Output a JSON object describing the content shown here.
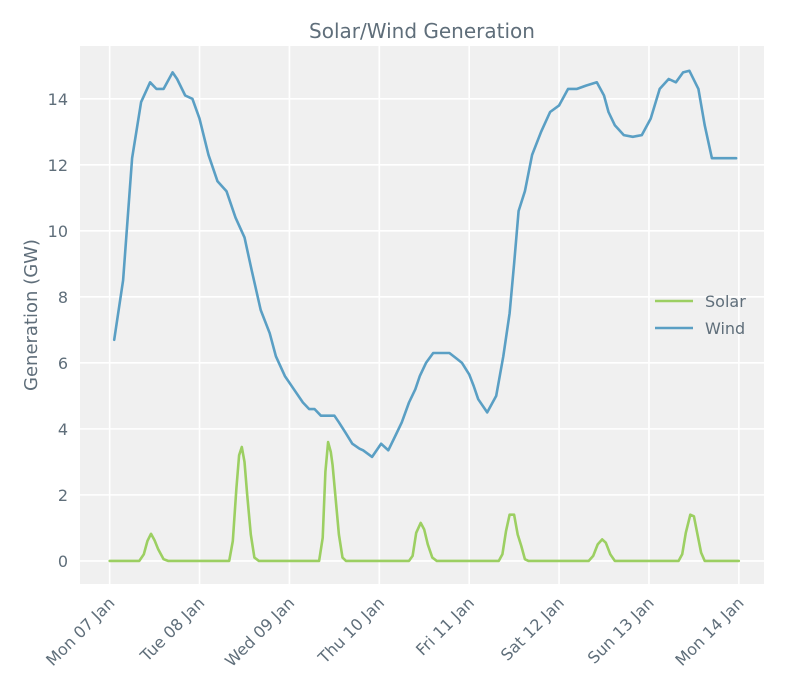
{
  "chart_data": {
    "type": "line",
    "title": "Solar/Wind Generation",
    "xlabel": "",
    "ylabel": "Generation (GW)",
    "ylim": [
      -0.7,
      15.6
    ],
    "xlim": [
      -0.33,
      7.28
    ],
    "yticks": [
      0,
      2,
      4,
      6,
      8,
      10,
      12,
      14
    ],
    "xticks": [
      0,
      1,
      2,
      3,
      4,
      5,
      6,
      7
    ],
    "xtick_labels": [
      "Mon 07 Jan",
      "Tue 08 Jan",
      "Wed 09 Jan",
      "Thu 10 Jan",
      "Fri 11 Jan",
      "Sat 12 Jan",
      "Sun 13 Jan",
      "Mon 14 Jan"
    ],
    "grid": true,
    "legend_position": "center-right",
    "series": [
      {
        "name": "Solar",
        "color": "#9ccf62",
        "x": [
          0,
          0.33,
          0.38,
          0.42,
          0.46,
          0.5,
          0.54,
          0.6,
          0.65,
          1.0,
          1.33,
          1.37,
          1.41,
          1.44,
          1.47,
          1.5,
          1.53,
          1.57,
          1.61,
          1.66,
          2.0,
          2.33,
          2.37,
          2.4,
          2.43,
          2.46,
          2.48,
          2.51,
          2.55,
          2.59,
          2.63,
          2.67,
          3.0,
          3.33,
          3.37,
          3.41,
          3.46,
          3.5,
          3.54,
          3.59,
          3.64,
          4.0,
          4.33,
          4.37,
          4.41,
          4.45,
          4.5,
          4.54,
          4.58,
          4.62,
          4.66,
          5.0,
          5.33,
          5.38,
          5.43,
          5.48,
          5.52,
          5.57,
          5.62,
          6.0,
          6.33,
          6.37,
          6.41,
          6.46,
          6.5,
          6.54,
          6.58,
          6.62,
          6.66,
          7.0
        ],
        "values": [
          0,
          0,
          0.2,
          0.6,
          0.82,
          0.62,
          0.35,
          0.05,
          0,
          0,
          0,
          0.6,
          2.2,
          3.2,
          3.45,
          3.0,
          2.0,
          0.8,
          0.1,
          0,
          0,
          0,
          0.7,
          2.7,
          3.6,
          3.3,
          2.9,
          2.0,
          0.8,
          0.1,
          0,
          0,
          0,
          0,
          0.15,
          0.85,
          1.15,
          0.95,
          0.5,
          0.1,
          0,
          0,
          0,
          0.2,
          0.9,
          1.4,
          1.4,
          0.8,
          0.45,
          0.05,
          0,
          0,
          0,
          0.15,
          0.5,
          0.65,
          0.55,
          0.2,
          0,
          0,
          0,
          0.2,
          0.85,
          1.4,
          1.35,
          0.8,
          0.25,
          0,
          0,
          0
        ]
      },
      {
        "name": "Wind",
        "color": "#5a9fc4",
        "x": [
          0.05,
          0.15,
          0.25,
          0.35,
          0.45,
          0.52,
          0.6,
          0.7,
          0.75,
          0.84,
          0.92,
          1.0,
          1.1,
          1.2,
          1.3,
          1.4,
          1.5,
          1.58,
          1.68,
          1.78,
          1.85,
          1.95,
          2.05,
          2.15,
          2.22,
          2.28,
          2.35,
          2.42,
          2.5,
          2.55,
          2.62,
          2.7,
          2.78,
          2.82,
          2.92,
          3.02,
          3.1,
          3.18,
          3.25,
          3.33,
          3.4,
          3.45,
          3.52,
          3.6,
          3.68,
          3.78,
          3.85,
          3.92,
          4.0,
          4.05,
          4.1,
          4.2,
          4.3,
          4.38,
          4.45,
          4.5,
          4.55,
          4.62,
          4.7,
          4.8,
          4.9,
          5.0,
          5.1,
          5.2,
          5.3,
          5.42,
          5.5,
          5.55,
          5.62,
          5.72,
          5.82,
          5.92,
          6.02,
          6.12,
          6.22,
          6.3,
          6.38,
          6.45,
          6.55,
          6.62,
          6.7,
          6.78,
          6.85,
          6.92,
          6.97
        ],
        "values": [
          6.7,
          8.5,
          12.2,
          13.9,
          14.5,
          14.3,
          14.3,
          14.8,
          14.6,
          14.1,
          14.0,
          13.4,
          12.3,
          11.5,
          11.2,
          10.4,
          9.8,
          8.8,
          7.6,
          6.9,
          6.2,
          5.6,
          5.2,
          4.8,
          4.6,
          4.6,
          4.4,
          4.4,
          4.4,
          4.2,
          3.9,
          3.55,
          3.4,
          3.35,
          3.15,
          3.55,
          3.35,
          3.8,
          4.2,
          4.8,
          5.2,
          5.6,
          6.0,
          6.3,
          6.3,
          6.3,
          6.15,
          6.0,
          5.65,
          5.3,
          4.9,
          4.5,
          5.0,
          6.2,
          7.5,
          9.0,
          10.6,
          11.2,
          12.3,
          13.0,
          13.6,
          13.8,
          14.3,
          14.3,
          14.4,
          14.5,
          14.1,
          13.6,
          13.2,
          12.9,
          12.85,
          12.9,
          13.4,
          14.3,
          14.6,
          14.5,
          14.8,
          14.85,
          14.3,
          13.2,
          12.2,
          12.2,
          12.2,
          12.2,
          12.2
        ]
      }
    ]
  }
}
